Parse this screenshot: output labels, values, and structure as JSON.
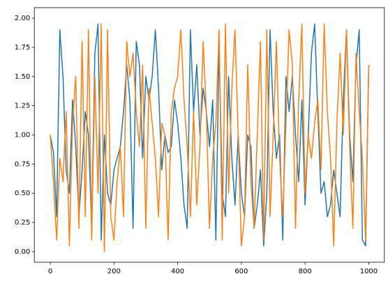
{
  "chart_data": {
    "type": "line",
    "x": [
      0,
      10,
      20,
      30,
      40,
      50,
      60,
      70,
      80,
      90,
      100,
      110,
      120,
      130,
      140,
      150,
      160,
      170,
      180,
      190,
      200,
      210,
      220,
      230,
      240,
      250,
      260,
      270,
      280,
      290,
      300,
      310,
      320,
      330,
      340,
      350,
      360,
      370,
      380,
      390,
      400,
      410,
      420,
      430,
      440,
      450,
      460,
      470,
      480,
      490,
      500,
      510,
      520,
      530,
      540,
      550,
      560,
      570,
      580,
      590,
      600,
      610,
      620,
      630,
      640,
      650,
      660,
      670,
      680,
      690,
      700,
      710,
      720,
      730,
      740,
      750,
      760,
      770,
      780,
      790,
      800,
      810,
      820,
      830,
      840,
      850,
      860,
      870,
      880,
      890,
      900,
      910,
      920,
      930,
      940,
      950,
      960,
      970,
      980,
      990,
      1000
    ],
    "series": [
      {
        "color": "#1f77b4",
        "values": [
          1.0,
          0.85,
          0.3,
          1.9,
          1.5,
          0.7,
          0.5,
          1.3,
          0.9,
          0.3,
          0.7,
          1.2,
          1.0,
          0.2,
          1.7,
          1.95,
          0.1,
          1.0,
          0.5,
          0.4,
          0.7,
          0.8,
          0.9,
          1.2,
          1.6,
          1.3,
          0.2,
          1.8,
          1.6,
          0.8,
          1.5,
          1.3,
          1.5,
          1.9,
          1.4,
          0.7,
          1.0,
          0.85,
          0.9,
          1.3,
          1.1,
          0.8,
          0.4,
          0.2,
          1.9,
          1.2,
          1.6,
          1.0,
          1.4,
          1.2,
          0.9,
          1.3,
          0.1,
          1.8,
          0.5,
          0.3,
          1.5,
          0.8,
          0.4,
          1.0,
          0.5,
          0.3,
          1.0,
          0.9,
          0.2,
          0.4,
          0.7,
          0.05,
          0.5,
          1.9,
          1.2,
          0.8,
          1.0,
          0.1,
          1.5,
          1.2,
          1.5,
          1.0,
          0.6,
          1.3,
          0.4,
          1.0,
          1.7,
          1.95,
          1.2,
          0.5,
          0.6,
          0.3,
          0.4,
          0.7,
          0.5,
          0.3,
          1.3,
          1.9,
          1.0,
          0.6,
          1.6,
          1.9,
          0.1,
          0.05,
          1.6
        ]
      },
      {
        "color": "#ff7f0e",
        "values": [
          1.0,
          0.6,
          0.1,
          0.8,
          0.6,
          1.2,
          0.05,
          1.1,
          1.5,
          0.2,
          1.8,
          0.3,
          1.9,
          0.1,
          1.5,
          0.5,
          1.95,
          0.0,
          1.9,
          0.3,
          0.1,
          0.6,
          0.9,
          0.3,
          1.8,
          1.5,
          1.7,
          1.2,
          0.9,
          1.6,
          0.2,
          1.4,
          1.1,
          0.8,
          0.3,
          1.1,
          1.0,
          0.1,
          1.2,
          1.4,
          1.5,
          1.9,
          1.3,
          0.9,
          0.3,
          1.2,
          0.4,
          0.9,
          1.8,
          1.2,
          0.2,
          0.8,
          1.1,
          1.9,
          0.1,
          1.95,
          0.5,
          1.4,
          1.9,
          1.0,
          0.05,
          0.3,
          1.6,
          0.6,
          0.2,
          1.0,
          1.8,
          0.1,
          1.9,
          0.3,
          1.0,
          1.8,
          0.8,
          0.3,
          1.1,
          1.9,
          1.6,
          0.2,
          1.3,
          1.95,
          0.5,
          1.0,
          0.8,
          1.1,
          1.3,
          0.7,
          1.95,
          1.2,
          0.8,
          0.05,
          1.1,
          1.7,
          1.0,
          1.9,
          0.9,
          0.2,
          1.7,
          1.2,
          0.8,
          0.1,
          1.6
        ]
      }
    ],
    "xlim": [
      -50,
      1049
    ],
    "ylim": [
      -0.09,
      2.09
    ],
    "xticks": [
      0,
      200,
      400,
      600,
      800,
      1000
    ],
    "yticks": [
      {
        "value": 0,
        "label": "0.00"
      },
      {
        "value": 0.25,
        "label": "0.25"
      },
      {
        "value": 0.5,
        "label": "0.50"
      },
      {
        "value": 0.75,
        "label": "0.75"
      },
      {
        "value": 1,
        "label": "1.00"
      },
      {
        "value": 1.25,
        "label": "1.25"
      },
      {
        "value": 1.5,
        "label": "1.50"
      },
      {
        "value": 1.75,
        "label": "1.75"
      },
      {
        "value": 2,
        "label": "2.00"
      }
    ]
  }
}
